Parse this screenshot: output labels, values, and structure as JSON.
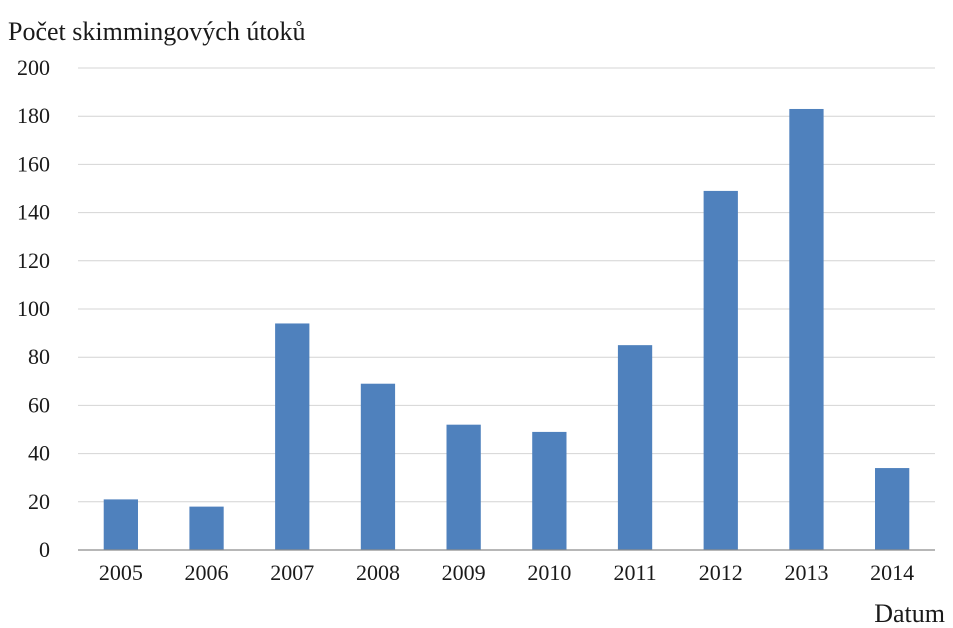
{
  "chart_data": {
    "type": "bar",
    "title": "",
    "ylabel": "Počet skimmingových útoků",
    "xlabel": "Datum",
    "categories": [
      "2005",
      "2006",
      "2007",
      "2008",
      "2009",
      "2010",
      "2011",
      "2012",
      "2013",
      "2014"
    ],
    "values": [
      21,
      18,
      94,
      69,
      52,
      49,
      85,
      149,
      183,
      34
    ],
    "ylim": [
      0,
      200
    ],
    "yticks": [
      "0",
      "20",
      "40",
      "60",
      "80",
      "100",
      "120",
      "140",
      "160",
      "180",
      "200"
    ],
    "grid": true,
    "legend": "none",
    "bar_color": "#4f81bd"
  }
}
